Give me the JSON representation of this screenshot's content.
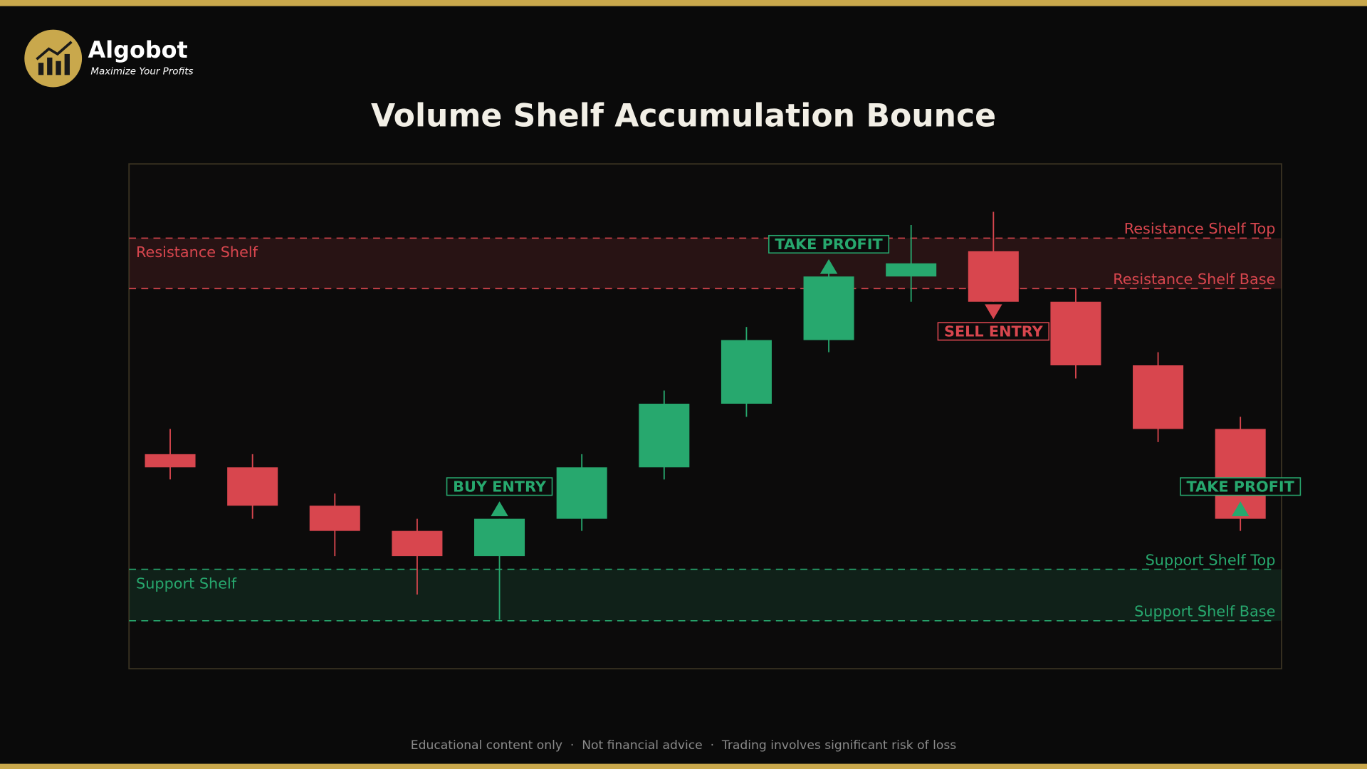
{
  "brand": {
    "name": "Algobot",
    "tagline": "Maximize Your Profits"
  },
  "footer": "Educational content only  ·  Not financial advice  ·  Trading involves significant risk of loss",
  "chart_data": {
    "type": "candlestick",
    "title": "Volume Shelf Accumulation Bounce",
    "ylim": [
      0,
      100
    ],
    "up_color": "#27a86e",
    "down_color": "#d8464e",
    "series": [
      {
        "open": [
          42.5,
          39.9,
          32.3,
          27.3,
          22.3,
          29.7,
          39.9,
          52.5,
          65.1,
          77.7,
          82.7,
          72.7,
          60.1,
          47.5
        ],
        "high": [
          47.5,
          42.5,
          34.7,
          29.7,
          29.7,
          42.5,
          55.1,
          67.7,
          80.3,
          87.9,
          90.5,
          75.3,
          62.7,
          49.9
        ],
        "low": [
          37.5,
          29.7,
          22.3,
          14.7,
          9.7,
          27.3,
          37.5,
          49.9,
          62.7,
          72.7,
          72.7,
          57.5,
          44.9,
          27.3
        ],
        "close": [
          39.9,
          32.3,
          27.3,
          22.3,
          29.7,
          39.9,
          52.5,
          65.1,
          77.7,
          80.3,
          72.7,
          60.1,
          47.5,
          29.7
        ]
      }
    ],
    "zones": [
      {
        "name": "Resistance Shelf",
        "top": 85.3,
        "base": 75.3,
        "top_label": "Resistance Shelf Top",
        "base_label": "Resistance Shelf Base",
        "color": "#d8464e"
      },
      {
        "name": "Support Shelf",
        "top": 19.7,
        "base": 9.5,
        "top_label": "Support Shelf Top",
        "base_label": "Support Shelf Base",
        "color": "#27a86e"
      }
    ],
    "annotations": [
      {
        "text": "BUY ENTRY",
        "index": 4,
        "position": "above",
        "color": "#27a86e"
      },
      {
        "text": "TAKE PROFIT",
        "index": 8,
        "position": "above",
        "color": "#27a86e"
      },
      {
        "text": "SELL ENTRY",
        "index": 10,
        "position": "below",
        "color": "#d8464e"
      },
      {
        "text": "TAKE PROFIT",
        "index": 13,
        "position": "above",
        "color": "#27a86e"
      }
    ]
  }
}
